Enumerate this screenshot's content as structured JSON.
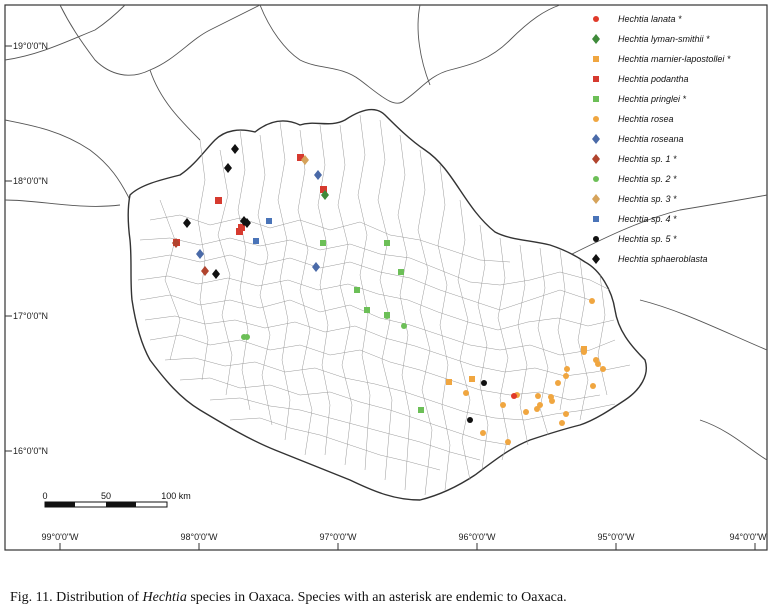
{
  "map": {
    "lat_labels": [
      "19°0'0\"N",
      "18°0'0\"N",
      "17°0'0\"N",
      "16°0'0\"N"
    ],
    "lon_labels": [
      "99°0'0\"W",
      "98°0'0\"W",
      "97°0'0\"W",
      "96°0'0\"W",
      "95°0'0\"W",
      "94°0'0\"W"
    ],
    "scale": {
      "ticks": [
        "0",
        "50",
        "100 km"
      ]
    }
  },
  "legend": [
    {
      "label": "Hechtia lanata *",
      "symbol": "circle",
      "color": "#e03a2a"
    },
    {
      "label": "Hechtia lyman-smithii *",
      "symbol": "diamond",
      "color": "#3f8a3a"
    },
    {
      "label": "Hechtia marnier-lapostollei *",
      "symbol": "square",
      "color": "#f0a640"
    },
    {
      "label": "Hechtia podantha",
      "symbol": "square",
      "color": "#d63a2f"
    },
    {
      "label": "Hechtia pringlei *",
      "symbol": "square",
      "color": "#6cbf57"
    },
    {
      "label": "Hechtia rosea",
      "symbol": "circle",
      "color": "#f0a640"
    },
    {
      "label": "Hechtia roseana",
      "symbol": "diamond",
      "color": "#4a6aa8"
    },
    {
      "label": "Hechtia sp. 1 *",
      "symbol": "diamond",
      "color": "#b1442e"
    },
    {
      "label": "Hechtia sp. 2 *",
      "symbol": "circle",
      "color": "#6cbf57"
    },
    {
      "label": "Hechtia sp. 3 *",
      "symbol": "diamond",
      "color": "#d6a35a"
    },
    {
      "label": "Hechtia sp. 4 *",
      "symbol": "square",
      "color": "#4a74b8"
    },
    {
      "label": "Hechtia sp. 5 *",
      "symbol": "circle",
      "color": "#111111"
    },
    {
      "label": "Hechtia sphaeroblasta",
      "symbol": "diamond",
      "color": "#111111"
    }
  ],
  "caption": {
    "prefix": "Fig. 11. Distribution of ",
    "genus": "Hechtia",
    "suffix": " species in Oaxaca. Species with an asterisk are endemic to Oaxaca."
  }
}
